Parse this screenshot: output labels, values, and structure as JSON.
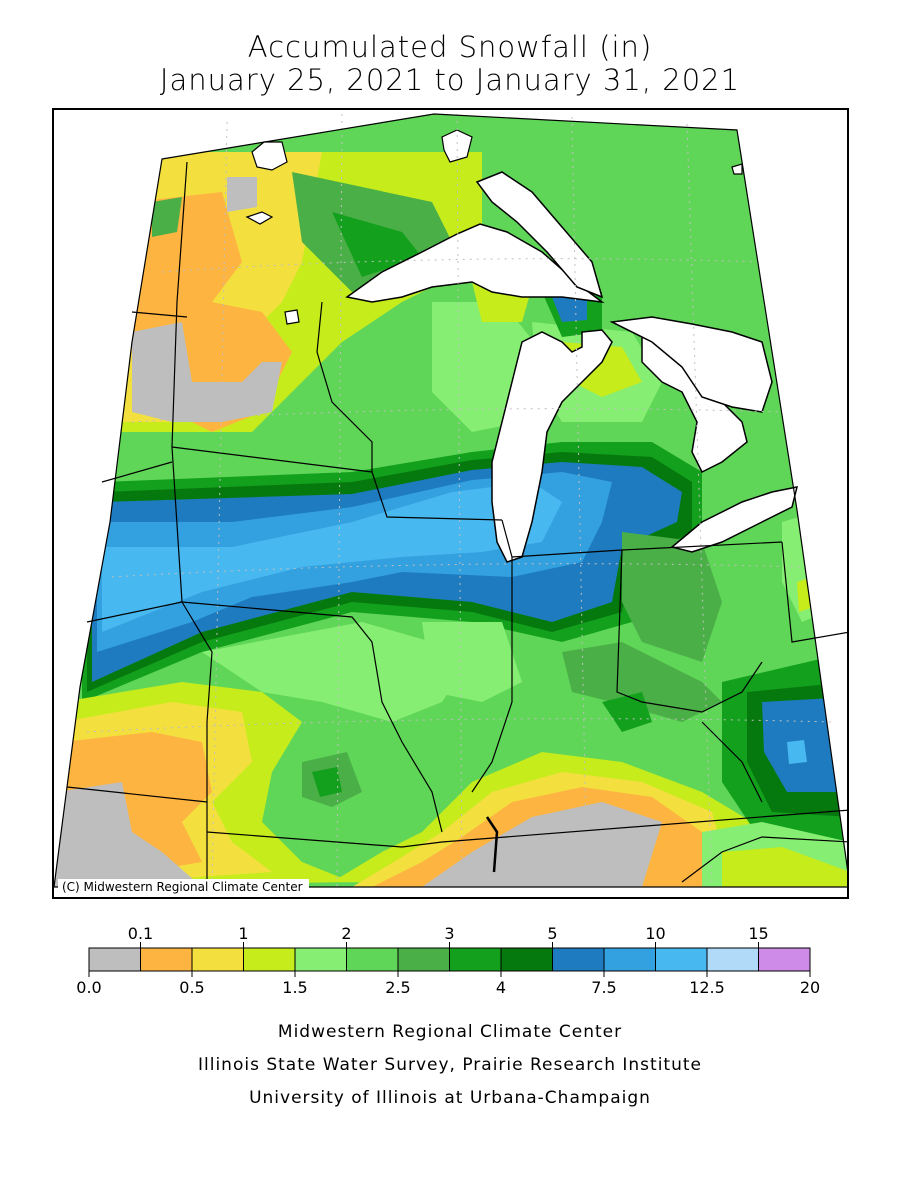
{
  "title_line1": "Accumulated Snowfall (in)",
  "title_line2": "January 25, 2021 to January 31, 2021",
  "copyright": "(C) Midwestern Regional Climate Center",
  "legend": {
    "upper_labels": [
      "0.1",
      "1",
      "2",
      "3",
      "5",
      "10",
      "15"
    ],
    "lower_labels": [
      "0.0",
      "0.5",
      "1.5",
      "2.5",
      "4",
      "7.5",
      "12.5",
      "20"
    ],
    "bins": [
      {
        "color": "#bebebe"
      },
      {
        "color": "#fdb440"
      },
      {
        "color": "#f3e03f"
      },
      {
        "color": "#c6ec1c"
      },
      {
        "color": "#86ee72"
      },
      {
        "color": "#5fd657"
      },
      {
        "color": "#4baf48"
      },
      {
        "color": "#13a01c"
      },
      {
        "color": "#06790e"
      },
      {
        "color": "#1e7bbf"
      },
      {
        "color": "#33a0df"
      },
      {
        "color": "#48b8f0"
      },
      {
        "color": "#b0daf7"
      },
      {
        "color": "#cf8be8"
      }
    ]
  },
  "credits": [
    "Midwestern Regional Climate Center",
    "Illinois State Water Survey, Prairie Research Institute",
    "University of Illinois at Urbana-Champaign"
  ],
  "colors": {
    "water": "#ffffff",
    "border": "#000000",
    "gridline": "#bfbfbf"
  }
}
